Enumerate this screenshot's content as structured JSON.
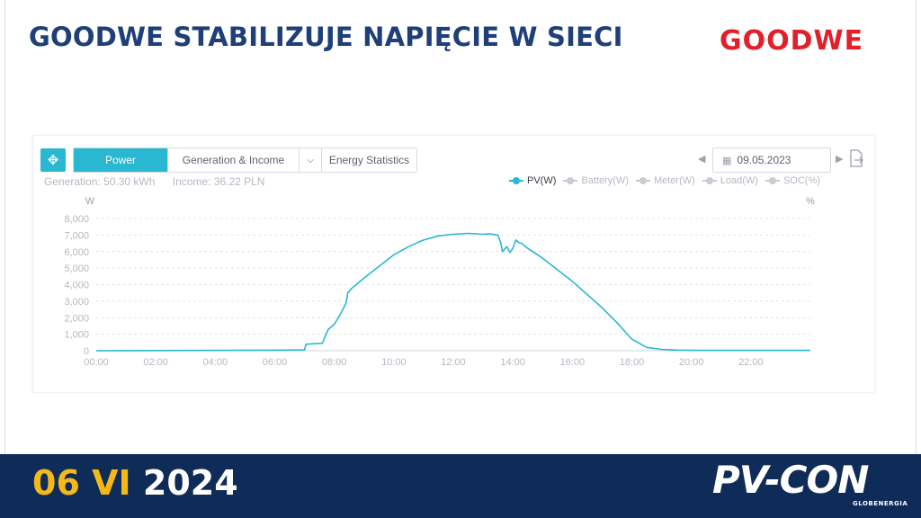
{
  "header": {
    "title": "GOODWE STABILIZUJE NAPIĘCIE W SIECI",
    "brand": "GOODWE"
  },
  "toolbar": {
    "move_icon": "move-icon",
    "tabs": [
      {
        "label": "Power",
        "active": true
      },
      {
        "label": "Generation & Income",
        "active": false
      }
    ],
    "dropdown_icon": "chevron-down-icon",
    "energy_statistics": "Energy Statistics",
    "date": "09.05.2023",
    "export_icon": "export-icon"
  },
  "stats": {
    "generation": "Generation: 50.30 kWh",
    "income": "Income: 36.22 PLN"
  },
  "legend": [
    {
      "label": "PV(W)",
      "active": true
    },
    {
      "label": "Battery(W)",
      "active": false
    },
    {
      "label": "Meter(W)",
      "active": false
    },
    {
      "label": "Load(W)",
      "active": false
    },
    {
      "label": "SOC(%)",
      "active": false
    }
  ],
  "colors": {
    "accent": "#2ab7d2",
    "title": "#1e3f78",
    "brand_red": "#e0202a",
    "footer_bg": "#0f2b57",
    "footer_highlight": "#f4b818"
  },
  "chart_data": {
    "type": "line",
    "y_unit_left": "W",
    "y_unit_right": "%",
    "ylim": [
      0,
      8000
    ],
    "y_ticks": [
      "0",
      "1,000",
      "2,000",
      "3,000",
      "4,000",
      "5,000",
      "6,000",
      "7,000",
      "8,000"
    ],
    "y_tick_values": [
      0,
      1000,
      2000,
      3000,
      4000,
      5000,
      6000,
      7000,
      8000
    ],
    "x_ticks": [
      "00:00",
      "02:00",
      "04:00",
      "06:00",
      "08:00",
      "10:00",
      "12:00",
      "14:00",
      "16:00",
      "18:00",
      "20:00",
      "22:00"
    ],
    "x_tick_values": [
      0,
      2,
      4,
      6,
      8,
      10,
      12,
      14,
      16,
      18,
      20,
      22
    ],
    "xlim": [
      0,
      24
    ],
    "grid": true,
    "series": [
      {
        "name": "PV(W)",
        "x": [
          0,
          6.0,
          7.0,
          7.05,
          7.1,
          7.6,
          7.7,
          7.8,
          8.0,
          8.2,
          8.4,
          8.45,
          8.6,
          9.0,
          9.5,
          10.0,
          10.5,
          11.0,
          11.5,
          12.0,
          12.5,
          13.0,
          13.2,
          13.5,
          13.6,
          13.65,
          13.8,
          13.9,
          14.0,
          14.1,
          14.2,
          14.3,
          14.5,
          15.0,
          15.5,
          16.0,
          16.5,
          17.0,
          17.5,
          18.0,
          18.5,
          19.0,
          19.5,
          20.0,
          24.0
        ],
        "y": [
          0,
          30,
          50,
          400,
          400,
          450,
          900,
          1300,
          1600,
          2200,
          2900,
          3500,
          3800,
          4400,
          5100,
          5800,
          6300,
          6700,
          6950,
          7050,
          7100,
          7050,
          7080,
          7000,
          6500,
          6000,
          6300,
          5950,
          6200,
          6700,
          6550,
          6500,
          6200,
          5600,
          4900,
          4200,
          3400,
          2600,
          1700,
          700,
          200,
          80,
          40,
          20,
          20
        ]
      }
    ]
  },
  "footer": {
    "date_highlight": "06 VI",
    "date_year": "2024",
    "logo": "PV-CON",
    "logo_sub": "GLOBENERGIA"
  }
}
